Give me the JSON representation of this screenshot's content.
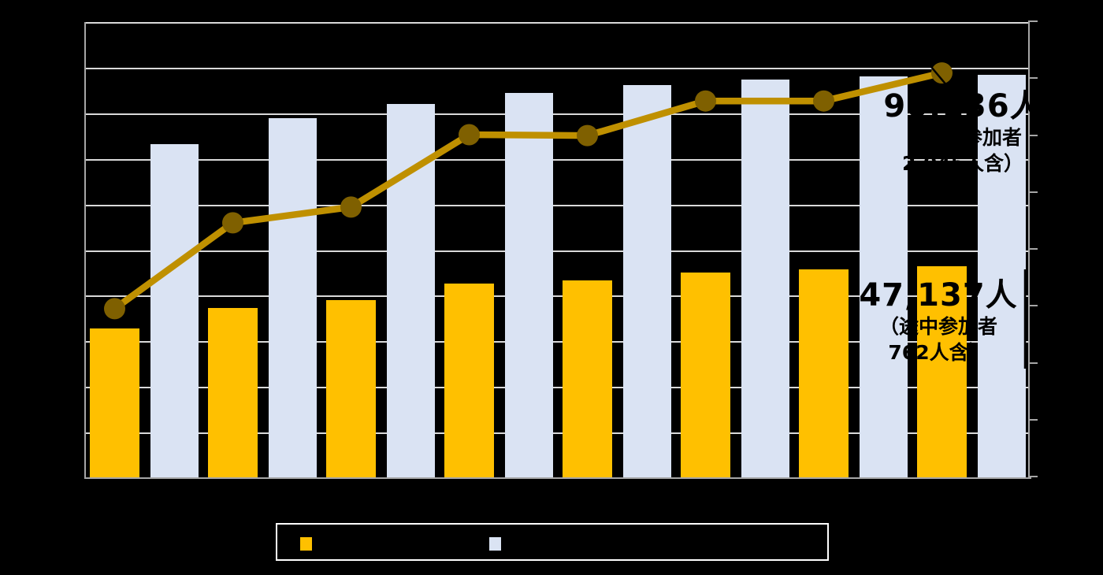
{
  "chart_data": {
    "type": "bar",
    "subtype": "combo-bar-line",
    "title": "",
    "xlabel": "",
    "ylabel": "",
    "categories": [
      "",
      "",
      "",
      "",
      "",
      "",
      "",
      ""
    ],
    "n_categories": 8,
    "x_axis_labels_visible": false,
    "y_axis_labels_visible": false,
    "ylim": [
      0,
      100000
    ],
    "gridlines": {
      "horizontal_count": 10,
      "on": true
    },
    "right_axis": {
      "tick_count": 9,
      "labels_visible": false
    },
    "legend_position": "bottom",
    "series": [
      {
        "name": "",
        "role": "gold-bars",
        "type": "bar",
        "color": "#FFC000",
        "values": [
          33300,
          37900,
          39600,
          43300,
          44000,
          45700,
          46400,
          47137
        ]
      },
      {
        "name": "",
        "role": "pale-blue-bars",
        "type": "bar",
        "color": "#DAE3F3",
        "values": [
          74300,
          80100,
          83300,
          85700,
          87400,
          88700,
          89400,
          89700
        ]
      },
      {
        "name": "",
        "role": "dark-gold-line",
        "type": "line",
        "color": "#BF9000",
        "marker_color": "#7F6000",
        "values": [
          37700,
          56800,
          60300,
          76400,
          76200,
          83900,
          83900,
          90136
        ]
      }
    ]
  },
  "annotations": {
    "line_total": {
      "line1": "90,136人",
      "line2": "（途中参加者",
      "line3": "2,045人含）"
    },
    "bar_total": {
      "line1": "47,137人",
      "line2": "（途中参加者",
      "line3": "762人含）"
    }
  },
  "legend": {
    "items": [
      {
        "swatch_color": "#FFC000",
        "label": ""
      },
      {
        "swatch_color": "#DAE3F3",
        "label": ""
      }
    ]
  },
  "colors": {
    "background": "#000000",
    "gold_bar": "#FFC000",
    "pale_blue_bar": "#DAE3F3",
    "line": "#BF9000",
    "marker": "#7F6000",
    "gridline": "#D9D9D9",
    "axis": "#A6A6A6",
    "annotation_text": "#000000",
    "legend_border": "#FFFFFF"
  }
}
